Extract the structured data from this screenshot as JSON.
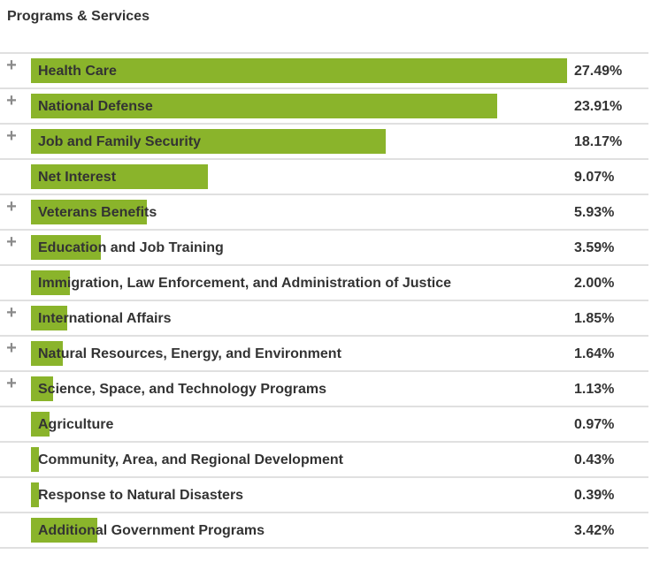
{
  "header": {
    "title": "Programs & Services"
  },
  "chart_data": {
    "type": "bar",
    "title": "Programs & Services",
    "categories": [
      "Health Care",
      "National Defense",
      "Job and Family Security",
      "Net Interest",
      "Veterans Benefits",
      "Education and Job Training",
      "Immigration, Law Enforcement, and Administration of Justice",
      "International Affairs",
      "Natural Resources, Energy, and Environment",
      "Science, Space, and Technology Programs",
      "Agriculture",
      "Community, Area, and Regional Development",
      "Response to Natural Disasters",
      "Additional Government Programs"
    ],
    "values": [
      27.49,
      23.91,
      18.17,
      9.07,
      5.93,
      3.59,
      2.0,
      1.85,
      1.64,
      1.13,
      0.97,
      0.43,
      0.39,
      3.42
    ],
    "value_labels": [
      "27.49%",
      "23.91%",
      "18.17%",
      "9.07%",
      "5.93%",
      "3.59%",
      "2.00%",
      "1.85%",
      "1.64%",
      "1.13%",
      "0.97%",
      "0.43%",
      "0.39%",
      "3.42%"
    ],
    "expandable": [
      true,
      true,
      true,
      false,
      true,
      true,
      false,
      true,
      true,
      true,
      false,
      false,
      false,
      false
    ],
    "xlim": [
      0,
      27.49
    ],
    "unit": "%"
  },
  "colors": {
    "bar": "#8ab42b",
    "text": "#333333",
    "divider": "#e0e0e0",
    "expander": "#8a8a8a"
  },
  "icons": {
    "expand": "plus-icon"
  },
  "expand_glyph": "+"
}
